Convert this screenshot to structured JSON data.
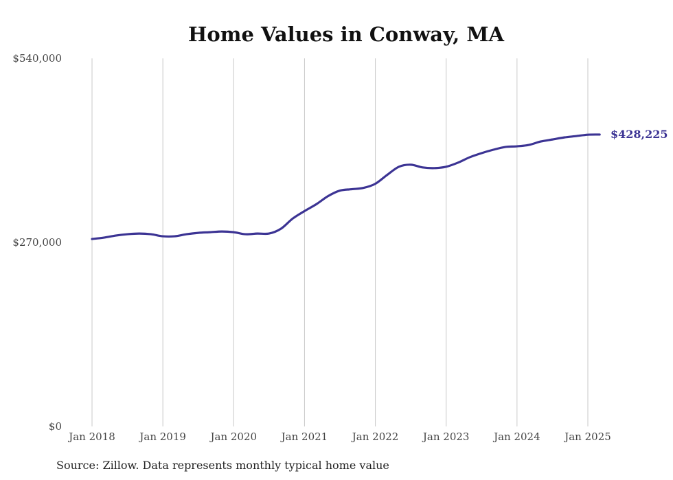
{
  "colors": {
    "series": "#3c3494",
    "gridline": "#c8c8c8",
    "text": "#111111"
  },
  "footer": {
    "source": "Source: Zillow. Data represents monthly typical home value"
  },
  "chart_data": {
    "type": "line",
    "title": "Home Values in Conway, MA",
    "xlabel": "",
    "ylabel": "",
    "ylim": [
      0,
      540000
    ],
    "y_ticks": [
      0,
      270000,
      540000
    ],
    "y_tick_labels": [
      "$0",
      "$270,000",
      "$540,000"
    ],
    "x_ticks": [
      "2018-01",
      "2019-01",
      "2020-01",
      "2021-01",
      "2022-01",
      "2023-01",
      "2024-01",
      "2025-01"
    ],
    "x_tick_labels": [
      "Jan 2018",
      "Jan 2019",
      "Jan 2020",
      "Jan 2021",
      "Jan 2022",
      "Jan 2023",
      "Jan 2024",
      "Jan 2025"
    ],
    "x_range": [
      "2018-01",
      "2025-03"
    ],
    "grid": "vertical",
    "legend": "none",
    "end_label": "$428,225",
    "series": [
      {
        "x": [
          "2018-01",
          "2018-03",
          "2018-05",
          "2018-07",
          "2018-09",
          "2018-11",
          "2019-01",
          "2019-03",
          "2019-05",
          "2019-07",
          "2019-09",
          "2019-11",
          "2020-01",
          "2020-03",
          "2020-05",
          "2020-07",
          "2020-09",
          "2020-11",
          "2021-01",
          "2021-03",
          "2021-05",
          "2021-07",
          "2021-09",
          "2021-11",
          "2022-01",
          "2022-03",
          "2022-05",
          "2022-07",
          "2022-09",
          "2022-11",
          "2023-01",
          "2023-03",
          "2023-05",
          "2023-07",
          "2023-09",
          "2023-11",
          "2024-01",
          "2024-03",
          "2024-05",
          "2024-07",
          "2024-09",
          "2024-11",
          "2025-01",
          "2025-03"
        ],
        "values": [
          275000,
          277000,
          280000,
          282000,
          283000,
          282000,
          279000,
          279000,
          282000,
          284000,
          285000,
          286000,
          285000,
          282000,
          283000,
          283000,
          290000,
          305000,
          316000,
          326000,
          338000,
          346000,
          348000,
          350000,
          356000,
          369000,
          381000,
          384000,
          380000,
          379000,
          381000,
          387000,
          395000,
          401000,
          406000,
          410000,
          411000,
          413000,
          418000,
          421000,
          424000,
          426000,
          428000,
          428225
        ]
      }
    ]
  }
}
